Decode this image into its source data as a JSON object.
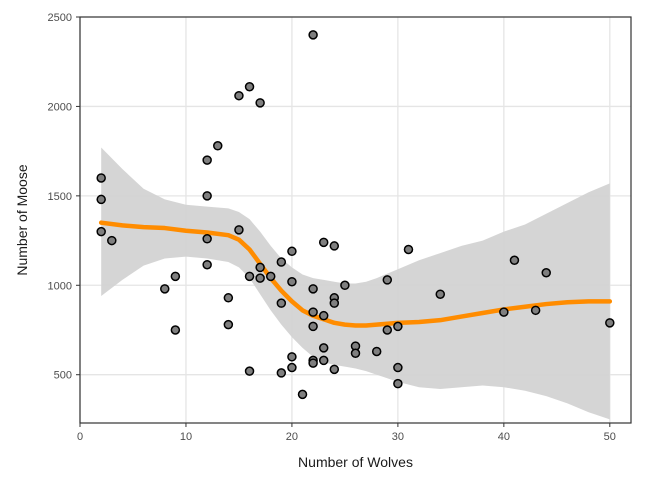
{
  "chart_data": {
    "type": "scatter",
    "title": "",
    "xlabel": "Number of Wolves",
    "ylabel": "Number of Moose",
    "xlim": [
      0,
      52
    ],
    "ylim": [
      230,
      2500
    ],
    "xticks": [
      0,
      10,
      20,
      30,
      40,
      50
    ],
    "xtick_labels": [
      "0",
      "10",
      "20",
      "30",
      "40",
      "50"
    ],
    "yticks": [
      500,
      1000,
      1500,
      2000,
      2500
    ],
    "ytick_labels": [
      "500",
      "1000",
      "1500",
      "2000",
      "2500"
    ],
    "grid": true,
    "legend": "none",
    "colors": {
      "point_fill": "#7f7f7f",
      "point_stroke": "#000000",
      "smooth_line": "#ff8c00",
      "confidence_band": "#d3d3d3",
      "grid": "#e5e5e5",
      "panel_border": "#333333"
    },
    "points": [
      {
        "x": 2,
        "y": 1600
      },
      {
        "x": 2,
        "y": 1480
      },
      {
        "x": 2,
        "y": 1300
      },
      {
        "x": 3,
        "y": 1250
      },
      {
        "x": 8,
        "y": 980
      },
      {
        "x": 9,
        "y": 1050
      },
      {
        "x": 9,
        "y": 750
      },
      {
        "x": 12,
        "y": 1700
      },
      {
        "x": 12,
        "y": 1500
      },
      {
        "x": 12,
        "y": 1260
      },
      {
        "x": 12,
        "y": 1115
      },
      {
        "x": 13,
        "y": 1780
      },
      {
        "x": 14,
        "y": 930
      },
      {
        "x": 14,
        "y": 780
      },
      {
        "x": 15,
        "y": 2060
      },
      {
        "x": 15,
        "y": 1310
      },
      {
        "x": 16,
        "y": 2110
      },
      {
        "x": 16,
        "y": 1050
      },
      {
        "x": 16,
        "y": 520
      },
      {
        "x": 17,
        "y": 2020
      },
      {
        "x": 17,
        "y": 1100
      },
      {
        "x": 17,
        "y": 1040
      },
      {
        "x": 18,
        "y": 1050
      },
      {
        "x": 19,
        "y": 1130
      },
      {
        "x": 19,
        "y": 900
      },
      {
        "x": 19,
        "y": 510
      },
      {
        "x": 20,
        "y": 1190
      },
      {
        "x": 20,
        "y": 1020
      },
      {
        "x": 20,
        "y": 600
      },
      {
        "x": 20,
        "y": 540
      },
      {
        "x": 21,
        "y": 390
      },
      {
        "x": 22,
        "y": 2400
      },
      {
        "x": 22,
        "y": 980
      },
      {
        "x": 22,
        "y": 850
      },
      {
        "x": 22,
        "y": 770
      },
      {
        "x": 22,
        "y": 580
      },
      {
        "x": 22,
        "y": 565
      },
      {
        "x": 23,
        "y": 1240
      },
      {
        "x": 23,
        "y": 830
      },
      {
        "x": 23,
        "y": 650
      },
      {
        "x": 23,
        "y": 580
      },
      {
        "x": 24,
        "y": 1220
      },
      {
        "x": 24,
        "y": 930
      },
      {
        "x": 24,
        "y": 900
      },
      {
        "x": 24,
        "y": 530
      },
      {
        "x": 25,
        "y": 1000
      },
      {
        "x": 26,
        "y": 660
      },
      {
        "x": 26,
        "y": 620
      },
      {
        "x": 28,
        "y": 630
      },
      {
        "x": 29,
        "y": 1030
      },
      {
        "x": 29,
        "y": 750
      },
      {
        "x": 30,
        "y": 770
      },
      {
        "x": 30,
        "y": 540
      },
      {
        "x": 30,
        "y": 450
      },
      {
        "x": 31,
        "y": 1200
      },
      {
        "x": 34,
        "y": 950
      },
      {
        "x": 40,
        "y": 850
      },
      {
        "x": 41,
        "y": 1140
      },
      {
        "x": 43,
        "y": 860
      },
      {
        "x": 44,
        "y": 1070
      },
      {
        "x": 50,
        "y": 790
      }
    ],
    "smooth_fit": {
      "x": [
        2,
        4,
        6,
        8,
        10,
        12,
        14,
        15,
        16,
        17,
        18,
        19,
        20,
        21,
        22,
        23,
        24,
        25,
        26,
        27,
        28,
        30,
        32,
        34,
        36,
        38,
        40,
        42,
        44,
        46,
        48,
        50
      ],
      "y": [
        1350,
        1335,
        1325,
        1320,
        1305,
        1295,
        1280,
        1255,
        1200,
        1120,
        1040,
        970,
        910,
        860,
        830,
        810,
        790,
        780,
        775,
        775,
        780,
        790,
        795,
        805,
        825,
        845,
        865,
        880,
        895,
        905,
        910,
        910
      ],
      "lower": [
        940,
        1030,
        1110,
        1150,
        1160,
        1150,
        1130,
        1100,
        1040,
        950,
        860,
        780,
        710,
        650,
        600,
        570,
        555,
        545,
        535,
        520,
        500,
        460,
        430,
        420,
        430,
        440,
        430,
        410,
        380,
        340,
        290,
        250
      ],
      "upper": [
        1770,
        1650,
        1540,
        1480,
        1450,
        1440,
        1430,
        1410,
        1370,
        1300,
        1220,
        1150,
        1100,
        1060,
        1040,
        1030,
        1020,
        1010,
        1010,
        1020,
        1040,
        1090,
        1140,
        1180,
        1220,
        1250,
        1300,
        1340,
        1400,
        1460,
        1520,
        1570
      ]
    }
  }
}
